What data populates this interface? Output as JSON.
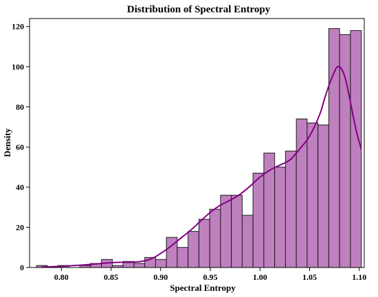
{
  "chart_data": {
    "type": "bar",
    "title": "Distribution of Spectral Entropy",
    "xlabel": "Spectral Entropy",
    "ylabel": "Density",
    "xlim": [
      0.768,
      1.105
    ],
    "ylim": [
      0,
      124
    ],
    "xticks": [
      "0.80",
      "0.85",
      "0.90",
      "0.95",
      "1.00",
      "1.05",
      "1.10"
    ],
    "xtick_values": [
      0.8,
      0.85,
      0.9,
      0.95,
      1.0,
      1.05,
      1.1
    ],
    "yticks": [
      "0",
      "20",
      "40",
      "60",
      "80",
      "100",
      "120"
    ],
    "ytick_values": [
      0,
      20,
      40,
      60,
      80,
      100,
      120
    ],
    "grid": false,
    "bar_color": "#BF80BF",
    "bar_edge_color": "#1a1a1a",
    "kde_color": "#800080",
    "bins": [
      {
        "x0": 0.775,
        "x1": 0.7859,
        "value": 1
      },
      {
        "x0": 0.7859,
        "x1": 0.7968,
        "value": 0
      },
      {
        "x0": 0.7968,
        "x1": 0.8077,
        "value": 1
      },
      {
        "x0": 0.8077,
        "x1": 0.8186,
        "value": 0
      },
      {
        "x0": 0.8186,
        "x1": 0.8295,
        "value": 1
      },
      {
        "x0": 0.8295,
        "x1": 0.8404,
        "value": 2
      },
      {
        "x0": 0.8404,
        "x1": 0.8513,
        "value": 4
      },
      {
        "x0": 0.8513,
        "x1": 0.8622,
        "value": 1
      },
      {
        "x0": 0.8622,
        "x1": 0.8731,
        "value": 3
      },
      {
        "x0": 0.8731,
        "x1": 0.884,
        "value": 2
      },
      {
        "x0": 0.884,
        "x1": 0.8949,
        "value": 5
      },
      {
        "x0": 0.8949,
        "x1": 0.9058,
        "value": 4
      },
      {
        "x0": 0.9058,
        "x1": 0.9167,
        "value": 15
      },
      {
        "x0": 0.9167,
        "x1": 0.9276,
        "value": 10
      },
      {
        "x0": 0.9276,
        "x1": 0.9385,
        "value": 18
      },
      {
        "x0": 0.9385,
        "x1": 0.9494,
        "value": 24
      },
      {
        "x0": 0.9494,
        "x1": 0.9603,
        "value": 29
      },
      {
        "x0": 0.9603,
        "x1": 0.9712,
        "value": 36
      },
      {
        "x0": 0.9712,
        "x1": 0.9821,
        "value": 36
      },
      {
        "x0": 0.9821,
        "x1": 0.993,
        "value": 26
      },
      {
        "x0": 0.993,
        "x1": 1.0039,
        "value": 47
      },
      {
        "x0": 1.0039,
        "x1": 1.0148,
        "value": 57
      },
      {
        "x0": 1.0148,
        "x1": 1.0257,
        "value": 50
      },
      {
        "x0": 1.0257,
        "x1": 1.0366,
        "value": 58
      },
      {
        "x0": 1.0366,
        "x1": 1.0475,
        "value": 74
      },
      {
        "x0": 1.0475,
        "x1": 1.0584,
        "value": 72
      },
      {
        "x0": 1.0584,
        "x1": 1.0693,
        "value": 71
      },
      {
        "x0": 1.0693,
        "x1": 1.0802,
        "value": 119
      },
      {
        "x0": 1.0802,
        "x1": 1.0911,
        "value": 116
      },
      {
        "x0": 1.0911,
        "x1": 1.102,
        "value": 118
      }
    ],
    "kde": {
      "x": [
        0.78,
        0.79,
        0.8,
        0.81,
        0.82,
        0.83,
        0.84,
        0.85,
        0.86,
        0.87,
        0.88,
        0.89,
        0.9,
        0.91,
        0.92,
        0.93,
        0.94,
        0.95,
        0.96,
        0.97,
        0.98,
        0.99,
        1.0,
        1.01,
        1.02,
        1.03,
        1.04,
        1.05,
        1.06,
        1.065,
        1.07,
        1.075,
        1.078,
        1.082,
        1.086,
        1.09,
        1.094,
        1.098,
        1.102
      ],
      "y": [
        0.2,
        0.4,
        0.6,
        0.9,
        1.2,
        1.6,
        2.0,
        2.4,
        2.6,
        2.6,
        3.0,
        4.2,
        7.0,
        10.5,
        14.5,
        18.5,
        23.0,
        27.5,
        31.0,
        33.5,
        36.5,
        40.5,
        45.0,
        48.5,
        51.0,
        53.5,
        59.0,
        65.5,
        76.0,
        84.0,
        91.5,
        97.5,
        100.0,
        99.0,
        94.0,
        85.0,
        75.0,
        66.0,
        59.0
      ]
    }
  }
}
